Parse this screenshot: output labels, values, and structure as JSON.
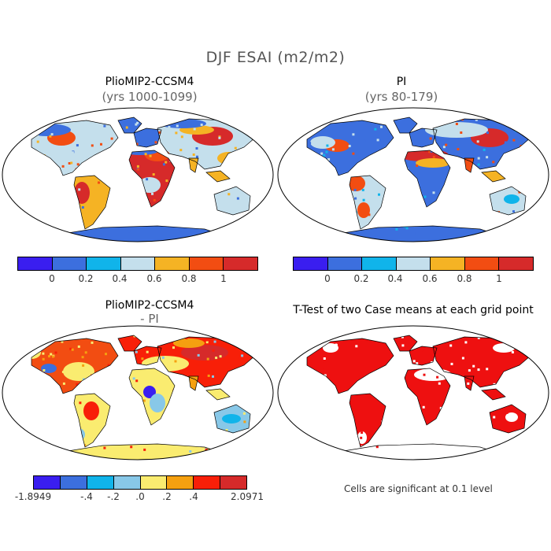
{
  "main_title": "DJF ESAI (m2/m2)",
  "panels": [
    {
      "title": "PlioMIP2-CCSM4",
      "subtitle": "(yrs 1000-1099)"
    },
    {
      "title": "PI",
      "subtitle": "(yrs 80-179)"
    },
    {
      "title": "PlioMIP2-CCSM4",
      "subtitle": "- PI"
    },
    {
      "title": "T-Test of two Case means at each grid point",
      "subtitle": ""
    }
  ],
  "colorbar_top": {
    "colors": [
      "#3a1ef0",
      "#3c6fde",
      "#10b4ea",
      "#c4dfec",
      "#f5b324",
      "#f24d12",
      "#d62a2a"
    ],
    "ticks": [
      "0",
      "0.2",
      "0.4",
      "0.6",
      "0.8",
      "1"
    ]
  },
  "colorbar_bottom": {
    "colors": [
      "#3a1ef0",
      "#3c6fde",
      "#10b4ea",
      "#88c8e8",
      "#faec70",
      "#f5a010",
      "#f81f08",
      "#d62a2a"
    ],
    "ticks": [
      "-1.8949",
      "-.4",
      "-.2",
      ".0",
      ".2",
      ".4",
      "2.0971"
    ]
  },
  "significance_note": "Cells are significant at 0.1 level",
  "map_colors": {
    "ocean": "#ffffff",
    "outline": "#000000",
    "significant": "#ee1010"
  }
}
